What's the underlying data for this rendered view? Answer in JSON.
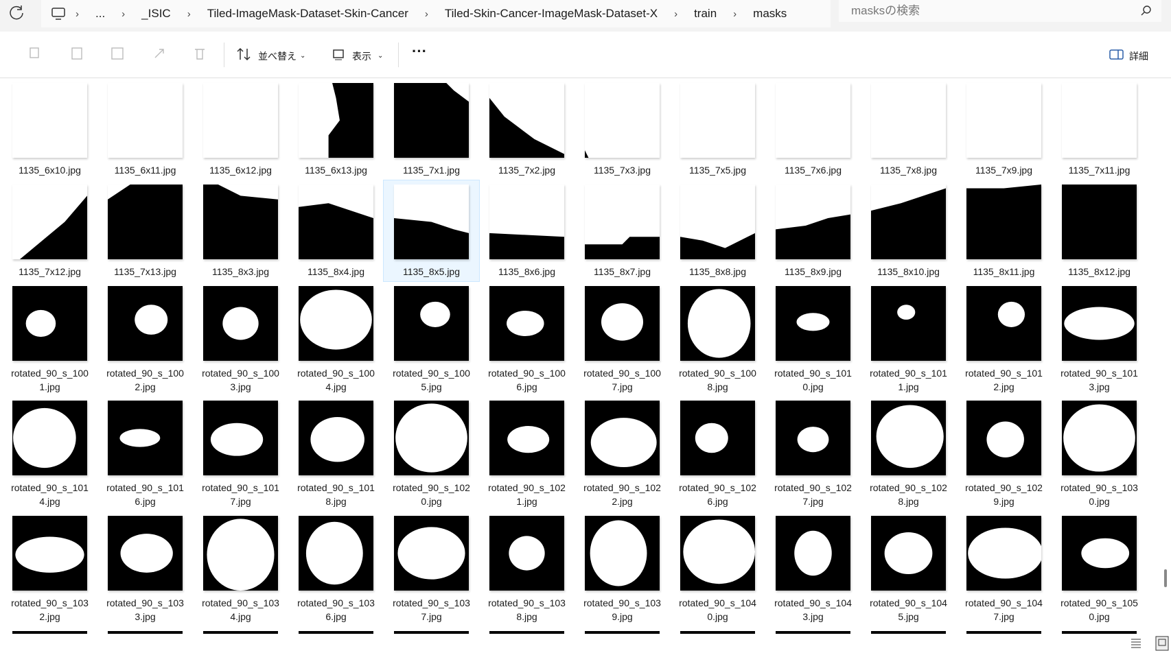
{
  "breadcrumb": [
    "...",
    "_ISIC",
    "Tiled-ImageMask-Dataset-Skin-Cancer",
    "Tiled-Skin-Cancer-ImageMask-Dataset-X",
    "train",
    "masks"
  ],
  "search_placeholder": "masksの検索",
  "toolbar": {
    "sort": "並べ替え",
    "view": "表示",
    "details": "詳細"
  },
  "items": [
    "1135_6x10.jpg",
    "1135_6x11.jpg",
    "1135_6x12.jpg",
    "1135_6x13.jpg",
    "1135_7x1.jpg",
    "1135_7x2.jpg",
    "1135_7x3.jpg",
    "1135_7x5.jpg",
    "1135_7x6.jpg",
    "1135_7x8.jpg",
    "1135_7x9.jpg",
    "1135_7x11.jpg",
    "1135_7x12.jpg",
    "1135_7x13.jpg",
    "1135_8x3.jpg",
    "1135_8x4.jpg",
    "1135_8x5.jpg",
    "1135_8x6.jpg",
    "1135_8x7.jpg",
    "1135_8x8.jpg",
    "1135_8x9.jpg",
    "1135_8x10.jpg",
    "1135_8x11.jpg",
    "1135_8x12.jpg",
    "rotated_90_s_1001.jpg",
    "rotated_90_s_1002.jpg",
    "rotated_90_s_1003.jpg",
    "rotated_90_s_1004.jpg",
    "rotated_90_s_1005.jpg",
    "rotated_90_s_1006.jpg",
    "rotated_90_s_1007.jpg",
    "rotated_90_s_1008.jpg",
    "rotated_90_s_1010.jpg",
    "rotated_90_s_1011.jpg",
    "rotated_90_s_1012.jpg",
    "rotated_90_s_1013.jpg",
    "rotated_90_s_1014.jpg",
    "rotated_90_s_1016.jpg",
    "rotated_90_s_1017.jpg",
    "rotated_90_s_1018.jpg",
    "rotated_90_s_1020.jpg",
    "rotated_90_s_1021.jpg",
    "rotated_90_s_1022.jpg",
    "rotated_90_s_1026.jpg",
    "rotated_90_s_1027.jpg",
    "rotated_90_s_1028.jpg",
    "rotated_90_s_1029.jpg",
    "rotated_90_s_1030.jpg",
    "rotated_90_s_1032.jpg",
    "rotated_90_s_1033.jpg",
    "rotated_90_s_1034.jpg",
    "rotated_90_s_1036.jpg",
    "rotated_90_s_1037.jpg",
    "rotated_90_s_1038.jpg",
    "rotated_90_s_1039.jpg",
    "rotated_90_s_1040.jpg",
    "rotated_90_s_1043.jpg",
    "rotated_90_s_1045.jpg",
    "rotated_90_s_1047.jpg",
    "rotated_90_s_1050.jpg"
  ]
}
